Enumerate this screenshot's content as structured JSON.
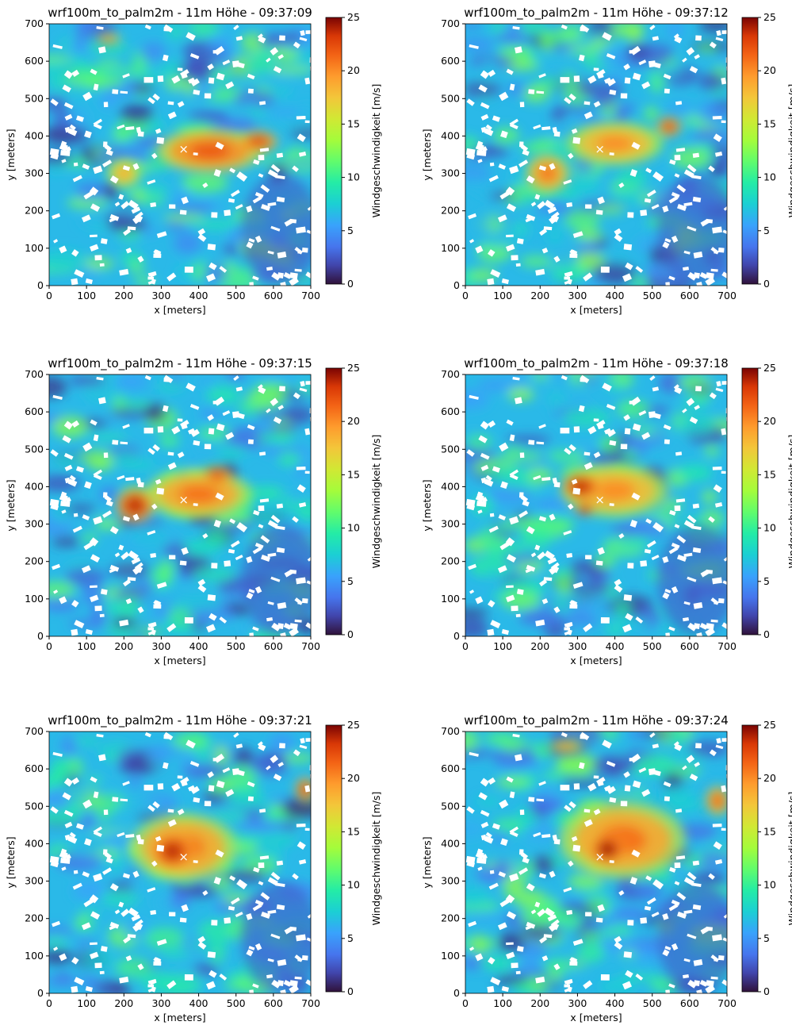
{
  "chart_data": [
    {
      "type": "heatmap",
      "title": "wrf100m_to_palm2m - 11m Höhe - 09:37:09",
      "xlabel": "x [meters]",
      "ylabel": "y [meters]",
      "xlim": [
        0,
        700
      ],
      "ylim": [
        0,
        700
      ],
      "xticks": [
        "0",
        "100",
        "200",
        "300",
        "400",
        "500",
        "600",
        "700"
      ],
      "yticks": [
        "0",
        "100",
        "200",
        "300",
        "400",
        "500",
        "600",
        "700"
      ],
      "colorbar": {
        "label": "Windgeschwindigkeit [m/s]",
        "range": [
          0,
          25
        ],
        "ticks": [
          "0",
          "5",
          "10",
          "15",
          "20",
          "25"
        ],
        "colormap": "turbo"
      },
      "marker": {
        "symbol": "×",
        "x": 360,
        "y": 365
      },
      "hotspots": [
        {
          "x": 430,
          "y": 360,
          "value": 22,
          "rx": 110,
          "ry": 45
        },
        {
          "x": 560,
          "y": 385,
          "value": 23,
          "rx": 40,
          "ry": 22
        },
        {
          "x": 200,
          "y": 300,
          "value": 19,
          "rx": 35,
          "ry": 30
        },
        {
          "x": 160,
          "y": 660,
          "value": 21,
          "rx": 25,
          "ry": 10
        }
      ]
    },
    {
      "type": "heatmap",
      "title": "wrf100m_to_palm2m - 11m Höhe - 09:37:12",
      "xlabel": "x [meters]",
      "ylabel": "y [meters]",
      "xlim": [
        0,
        700
      ],
      "ylim": [
        0,
        700
      ],
      "xticks": [
        "0",
        "100",
        "200",
        "300",
        "400",
        "500",
        "600",
        "700"
      ],
      "yticks": [
        "0",
        "100",
        "200",
        "300",
        "400",
        "500",
        "600",
        "700"
      ],
      "colorbar": {
        "label": "Windgeschwindigkeit [m/s]",
        "range": [
          0,
          25
        ],
        "ticks": [
          "0",
          "5",
          "10",
          "15",
          "20",
          "25"
        ],
        "colormap": "turbo"
      },
      "marker": {
        "symbol": "×",
        "x": 360,
        "y": 365
      },
      "hotspots": [
        {
          "x": 400,
          "y": 380,
          "value": 20,
          "rx": 100,
          "ry": 45
        },
        {
          "x": 220,
          "y": 300,
          "value": 21,
          "rx": 45,
          "ry": 40
        },
        {
          "x": 545,
          "y": 425,
          "value": 23,
          "rx": 25,
          "ry": 20
        }
      ]
    },
    {
      "type": "heatmap",
      "title": "wrf100m_to_palm2m - 11m Höhe - 09:37:15",
      "xlabel": "x [meters]",
      "ylabel": "y [meters]",
      "xlim": [
        0,
        700
      ],
      "ylim": [
        0,
        700
      ],
      "xticks": [
        "0",
        "100",
        "200",
        "300",
        "400",
        "500",
        "600",
        "700"
      ],
      "yticks": [
        "0",
        "100",
        "200",
        "300",
        "400",
        "500",
        "600",
        "700"
      ],
      "colorbar": {
        "label": "Windgeschwindigkeit [m/s]",
        "range": [
          0,
          25
        ],
        "ticks": [
          "0",
          "5",
          "10",
          "15",
          "20",
          "25"
        ],
        "colormap": "turbo"
      },
      "marker": {
        "symbol": "×",
        "x": 360,
        "y": 365
      },
      "hotspots": [
        {
          "x": 400,
          "y": 380,
          "value": 21,
          "rx": 110,
          "ry": 50
        },
        {
          "x": 230,
          "y": 350,
          "value": 24,
          "rx": 40,
          "ry": 35
        },
        {
          "x": 450,
          "y": 430,
          "value": 23,
          "rx": 30,
          "ry": 18
        }
      ]
    },
    {
      "type": "heatmap",
      "title": "wrf100m_to_palm2m - 11m Höhe - 09:37:18",
      "xlabel": "x [meters]",
      "ylabel": "y [meters]",
      "xlim": [
        0,
        700
      ],
      "ylim": [
        0,
        700
      ],
      "xticks": [
        "0",
        "100",
        "200",
        "300",
        "400",
        "500",
        "600",
        "700"
      ],
      "yticks": [
        "0",
        "100",
        "200",
        "300",
        "400",
        "500",
        "600",
        "700"
      ],
      "colorbar": {
        "label": "Windgeschwindigkeit [m/s]",
        "range": [
          0,
          25
        ],
        "ticks": [
          "0",
          "5",
          "10",
          "15",
          "20",
          "25"
        ],
        "colormap": "turbo"
      },
      "marker": {
        "symbol": "×",
        "x": 360,
        "y": 365
      },
      "hotspots": [
        {
          "x": 400,
          "y": 390,
          "value": 20,
          "rx": 110,
          "ry": 55
        },
        {
          "x": 310,
          "y": 400,
          "value": 24,
          "rx": 40,
          "ry": 30
        },
        {
          "x": 320,
          "y": 340,
          "value": 25,
          "rx": 20,
          "ry": 12
        }
      ]
    },
    {
      "type": "heatmap",
      "title": "wrf100m_to_palm2m - 11m Höhe - 09:37:21",
      "xlabel": "x [meters]",
      "ylabel": "y [meters]",
      "xlim": [
        0,
        700
      ],
      "ylim": [
        0,
        700
      ],
      "xticks": [
        "0",
        "100",
        "200",
        "300",
        "400",
        "500",
        "600",
        "700"
      ],
      "yticks": [
        "0",
        "100",
        "200",
        "300",
        "400",
        "500",
        "600",
        "700"
      ],
      "colorbar": {
        "label": "Windgeschwindigkeit [m/s]",
        "range": [
          0,
          25
        ],
        "ticks": [
          "0",
          "5",
          "10",
          "15",
          "20",
          "25"
        ],
        "colormap": "turbo"
      },
      "marker": {
        "symbol": "×",
        "x": 360,
        "y": 365
      },
      "hotspots": [
        {
          "x": 360,
          "y": 390,
          "value": 21,
          "rx": 110,
          "ry": 70
        },
        {
          "x": 330,
          "y": 380,
          "value": 24,
          "rx": 45,
          "ry": 40
        },
        {
          "x": 685,
          "y": 545,
          "value": 23,
          "rx": 20,
          "ry": 25
        }
      ]
    },
    {
      "type": "heatmap",
      "title": "wrf100m_to_palm2m - 11m Höhe - 09:37:24",
      "xlabel": "x [meters]",
      "ylabel": "y [meters]",
      "xlim": [
        0,
        700
      ],
      "ylim": [
        0,
        700
      ],
      "xticks": [
        "0",
        "100",
        "200",
        "300",
        "400",
        "500",
        "600",
        "700"
      ],
      "yticks": [
        "0",
        "100",
        "200",
        "300",
        "400",
        "500",
        "600",
        "700"
      ],
      "colorbar": {
        "label": "Windgeschwindigkeit [m/s]",
        "range": [
          0,
          25
        ],
        "ticks": [
          "0",
          "5",
          "10",
          "15",
          "20",
          "25"
        ],
        "colormap": "turbo"
      },
      "marker": {
        "symbol": "×",
        "x": 360,
        "y": 365
      },
      "hotspots": [
        {
          "x": 420,
          "y": 410,
          "value": 21,
          "rx": 130,
          "ry": 80
        },
        {
          "x": 380,
          "y": 385,
          "value": 25,
          "rx": 35,
          "ry": 30
        },
        {
          "x": 675,
          "y": 515,
          "value": 22,
          "rx": 25,
          "ry": 30
        },
        {
          "x": 270,
          "y": 660,
          "value": 20,
          "rx": 35,
          "ry": 12
        }
      ]
    }
  ]
}
